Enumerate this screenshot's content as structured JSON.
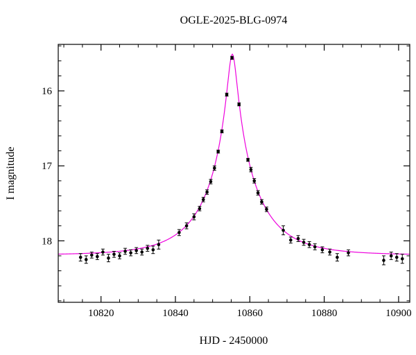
{
  "chart_data": {
    "type": "scatter",
    "title": "OGLE-2025-BLG-0974",
    "xlabel": "HJD - 2450000",
    "ylabel": "I magnitude",
    "xlim": [
      10808.5,
      10903.0
    ],
    "ylim": [
      18.82,
      15.38
    ],
    "y_axis_inverted": true,
    "grid": false,
    "legend_position": "none",
    "x_major_ticks": [
      10820,
      10840,
      10860,
      10880,
      10900
    ],
    "x_major_tick_labels": [
      "10820",
      "10840",
      "10860",
      "10880",
      "10900"
    ],
    "x_minor_step": 5,
    "y_major_ticks": [
      16,
      17,
      18
    ],
    "y_major_tick_labels": [
      "16",
      "17",
      "18"
    ],
    "y_minor_step": 0.2,
    "colors": {
      "model_curve": "#ee00dd",
      "data_points": "#000000",
      "frame": "#000000"
    },
    "series": [
      {
        "name": "data",
        "type": "scatter_errorbar",
        "color": "#000000",
        "points": [
          [
            10814.5,
            18.22,
            0.05
          ],
          [
            10816.0,
            18.25,
            0.05
          ],
          [
            10817.5,
            18.19,
            0.04
          ],
          [
            10819.0,
            18.21,
            0.04
          ],
          [
            10820.5,
            18.15,
            0.04
          ],
          [
            10822.0,
            18.23,
            0.05
          ],
          [
            10823.5,
            18.18,
            0.04
          ],
          [
            10825.0,
            18.2,
            0.04
          ],
          [
            10826.5,
            18.14,
            0.04
          ],
          [
            10828.0,
            18.16,
            0.04
          ],
          [
            10829.5,
            18.13,
            0.04
          ],
          [
            10831.0,
            18.15,
            0.04
          ],
          [
            10832.5,
            18.1,
            0.04
          ],
          [
            10834.0,
            18.12,
            0.05
          ],
          [
            10835.5,
            18.05,
            0.06
          ],
          [
            10841.0,
            17.89,
            0.04
          ],
          [
            10843.0,
            17.8,
            0.04
          ],
          [
            10845.0,
            17.68,
            0.04
          ],
          [
            10846.5,
            17.57,
            0.03
          ],
          [
            10847.5,
            17.45,
            0.03
          ],
          [
            10848.5,
            17.35,
            0.03
          ],
          [
            10849.5,
            17.21,
            0.03
          ],
          [
            10850.5,
            17.03,
            0.03
          ],
          [
            10851.5,
            16.81,
            0.02
          ],
          [
            10852.5,
            16.54,
            0.02
          ],
          [
            10853.8,
            16.05,
            0.02
          ],
          [
            10855.2,
            15.56,
            0.02
          ],
          [
            10857.1,
            16.18,
            0.02
          ],
          [
            10859.5,
            16.92,
            0.02
          ],
          [
            10860.3,
            17.05,
            0.03
          ],
          [
            10861.2,
            17.2,
            0.03
          ],
          [
            10862.2,
            17.36,
            0.03
          ],
          [
            10863.2,
            17.48,
            0.03
          ],
          [
            10864.5,
            17.58,
            0.03
          ],
          [
            10869.0,
            17.86,
            0.06
          ],
          [
            10871.0,
            17.99,
            0.04
          ],
          [
            10873.0,
            17.97,
            0.04
          ],
          [
            10874.5,
            18.02,
            0.04
          ],
          [
            10876.0,
            18.05,
            0.04
          ],
          [
            10877.5,
            18.08,
            0.04
          ],
          [
            10879.5,
            18.12,
            0.04
          ],
          [
            10881.5,
            18.15,
            0.04
          ],
          [
            10883.5,
            18.22,
            0.05
          ],
          [
            10886.5,
            18.16,
            0.04
          ],
          [
            10896.0,
            18.26,
            0.06
          ],
          [
            10898.0,
            18.2,
            0.05
          ],
          [
            10899.5,
            18.22,
            0.05
          ],
          [
            10901.0,
            18.24,
            0.06
          ]
        ]
      },
      {
        "name": "model",
        "type": "line",
        "color": "#ee00dd",
        "model": {
          "kind": "paczynski_microlensing",
          "t0": 10855.3,
          "tE": 14.0,
          "u0": 0.085,
          "baseline_mag": 18.19,
          "peak_mag": 15.52
        }
      }
    ]
  }
}
